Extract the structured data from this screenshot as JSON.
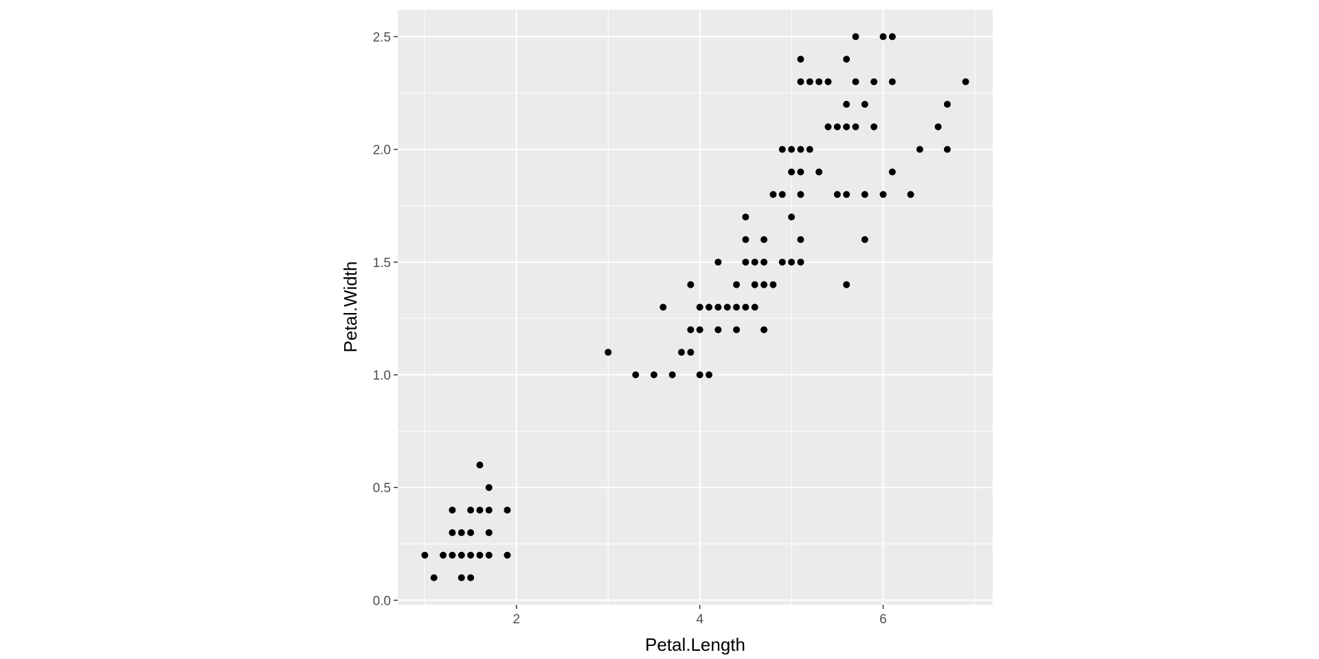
{
  "chart_data": {
    "type": "scatter",
    "title": "",
    "xlabel": "Petal.Length",
    "ylabel": "Petal.Width",
    "xlim": [
      0.705,
      7.195
    ],
    "ylim": [
      -0.02,
      2.62
    ],
    "x_ticks": [
      2,
      4,
      6
    ],
    "x_tick_labels": [
      "2",
      "4",
      "6"
    ],
    "x_minor_ticks": [
      1,
      3,
      5,
      7
    ],
    "y_ticks": [
      0.0,
      0.5,
      1.0,
      1.5,
      2.0,
      2.5
    ],
    "y_tick_labels": [
      "0.0",
      "0.5",
      "1.0",
      "1.5",
      "2.0",
      "2.5"
    ],
    "y_minor_ticks": [
      0.25,
      0.75,
      1.25,
      1.75,
      2.25
    ],
    "grid": true,
    "legend": "none",
    "colors": {
      "panel": "#ebebeb",
      "grid": "#ffffff",
      "point": "#000000",
      "tick_text": "#4d4d4d",
      "axis_title": "#000000"
    },
    "points": [
      [
        1.0,
        0.2
      ],
      [
        1.1,
        0.1
      ],
      [
        1.2,
        0.2
      ],
      [
        1.3,
        0.2
      ],
      [
        1.3,
        0.3
      ],
      [
        1.3,
        0.4
      ],
      [
        1.4,
        0.1
      ],
      [
        1.4,
        0.2
      ],
      [
        1.4,
        0.3
      ],
      [
        1.5,
        0.1
      ],
      [
        1.5,
        0.2
      ],
      [
        1.5,
        0.3
      ],
      [
        1.5,
        0.4
      ],
      [
        1.6,
        0.2
      ],
      [
        1.6,
        0.4
      ],
      [
        1.6,
        0.6
      ],
      [
        1.7,
        0.2
      ],
      [
        1.7,
        0.3
      ],
      [
        1.7,
        0.4
      ],
      [
        1.7,
        0.5
      ],
      [
        1.9,
        0.2
      ],
      [
        1.9,
        0.4
      ],
      [
        3.0,
        1.1
      ],
      [
        3.3,
        1.0
      ],
      [
        3.5,
        1.0
      ],
      [
        3.6,
        1.3
      ],
      [
        3.7,
        1.0
      ],
      [
        3.8,
        1.1
      ],
      [
        3.9,
        1.1
      ],
      [
        3.9,
        1.2
      ],
      [
        3.9,
        1.4
      ],
      [
        4.0,
        1.0
      ],
      [
        4.0,
        1.2
      ],
      [
        4.0,
        1.3
      ],
      [
        4.1,
        1.0
      ],
      [
        4.1,
        1.3
      ],
      [
        4.2,
        1.2
      ],
      [
        4.2,
        1.3
      ],
      [
        4.2,
        1.5
      ],
      [
        4.3,
        1.3
      ],
      [
        4.4,
        1.2
      ],
      [
        4.4,
        1.3
      ],
      [
        4.4,
        1.4
      ],
      [
        4.5,
        1.3
      ],
      [
        4.5,
        1.5
      ],
      [
        4.5,
        1.6
      ],
      [
        4.5,
        1.7
      ],
      [
        4.6,
        1.3
      ],
      [
        4.6,
        1.4
      ],
      [
        4.6,
        1.5
      ],
      [
        4.7,
        1.2
      ],
      [
        4.7,
        1.4
      ],
      [
        4.7,
        1.5
      ],
      [
        4.7,
        1.6
      ],
      [
        4.8,
        1.4
      ],
      [
        4.8,
        1.8
      ],
      [
        4.9,
        1.5
      ],
      [
        4.9,
        1.8
      ],
      [
        4.9,
        2.0
      ],
      [
        5.0,
        1.5
      ],
      [
        5.0,
        1.7
      ],
      [
        5.0,
        1.9
      ],
      [
        5.0,
        2.0
      ],
      [
        5.1,
        1.5
      ],
      [
        5.1,
        1.6
      ],
      [
        5.1,
        1.8
      ],
      [
        5.1,
        1.9
      ],
      [
        5.1,
        2.0
      ],
      [
        5.1,
        2.3
      ],
      [
        5.1,
        2.4
      ],
      [
        5.2,
        2.0
      ],
      [
        5.2,
        2.3
      ],
      [
        5.3,
        1.9
      ],
      [
        5.3,
        2.3
      ],
      [
        5.4,
        2.1
      ],
      [
        5.4,
        2.3
      ],
      [
        5.5,
        1.8
      ],
      [
        5.5,
        2.1
      ],
      [
        5.6,
        1.4
      ],
      [
        5.6,
        1.8
      ],
      [
        5.6,
        2.1
      ],
      [
        5.6,
        2.2
      ],
      [
        5.6,
        2.4
      ],
      [
        5.7,
        2.1
      ],
      [
        5.7,
        2.3
      ],
      [
        5.7,
        2.5
      ],
      [
        5.8,
        1.6
      ],
      [
        5.8,
        1.8
      ],
      [
        5.8,
        2.2
      ],
      [
        5.9,
        2.1
      ],
      [
        5.9,
        2.3
      ],
      [
        6.0,
        1.8
      ],
      [
        6.0,
        2.5
      ],
      [
        6.1,
        1.9
      ],
      [
        6.1,
        2.3
      ],
      [
        6.1,
        2.5
      ],
      [
        6.3,
        1.8
      ],
      [
        6.4,
        2.0
      ],
      [
        6.6,
        2.1
      ],
      [
        6.7,
        2.0
      ],
      [
        6.7,
        2.2
      ],
      [
        6.9,
        2.3
      ]
    ]
  }
}
